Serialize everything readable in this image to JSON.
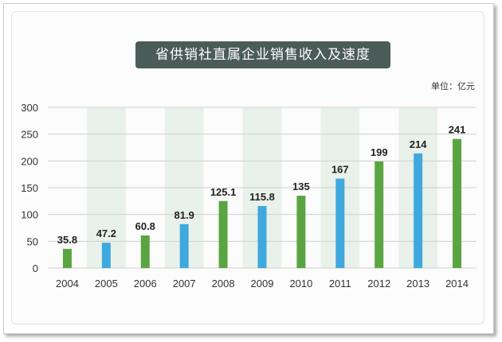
{
  "chart_data": {
    "type": "bar",
    "title": "省供销社直属企业销售收入及速度",
    "unit_label": "单位：亿元",
    "categories": [
      "2004",
      "2005",
      "2006",
      "2007",
      "2008",
      "2009",
      "2010",
      "2011",
      "2012",
      "2013",
      "2014"
    ],
    "values": [
      35.8,
      47.2,
      60.8,
      81.9,
      125.1,
      115.8,
      135,
      167,
      199,
      214,
      241
    ],
    "value_labels": [
      "35.8",
      "47.2",
      "60.8",
      "81.9",
      "125.1",
      "115.8",
      "135",
      "167",
      "199",
      "214",
      "241"
    ],
    "bar_colors": [
      "#5aa541",
      "#3fa9dd",
      "#5aa541",
      "#3fa9dd",
      "#5aa541",
      "#3fa9dd",
      "#5aa541",
      "#3fa9dd",
      "#5aa541",
      "#3fa9dd",
      "#5aa541"
    ],
    "shaded_columns": [
      "2005",
      "2007",
      "2009",
      "2011",
      "2013"
    ],
    "shade_color": "#e8f2ea",
    "ylim": [
      0,
      300
    ],
    "yticks": [
      0,
      50,
      100,
      150,
      200,
      250,
      300
    ],
    "grid": true,
    "legend": "none"
  }
}
